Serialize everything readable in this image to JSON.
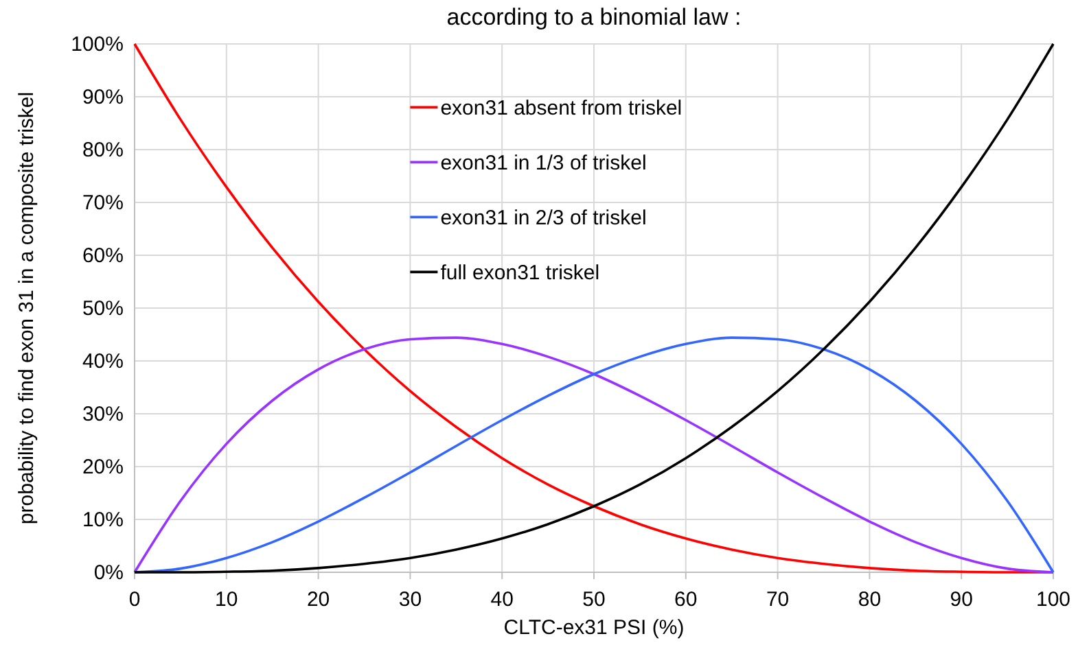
{
  "chart_data": {
    "type": "line",
    "title": "according to a binomial law :",
    "xlabel": "CLTC-ex31 PSI (%)",
    "ylabel": "probability to find exon 31 in a composite triskel",
    "x": [
      0,
      5,
      10,
      15,
      20,
      25,
      30,
      35,
      40,
      45,
      50,
      55,
      60,
      65,
      70,
      75,
      80,
      85,
      90,
      95,
      100
    ],
    "series": [
      {
        "name": "exon31 absent from triskel",
        "color": "#ff0000",
        "values": [
          100,
          85.7,
          72.9,
          61.4,
          51.2,
          42.2,
          34.3,
          27.5,
          21.6,
          16.6,
          12.5,
          9.1,
          6.4,
          4.3,
          2.7,
          1.6,
          0.8,
          0.3,
          0.1,
          0,
          0
        ]
      },
      {
        "name": "exon31 in 1/3 of triskel",
        "color": "#9933ff",
        "values": [
          0,
          13.5,
          24.3,
          32.5,
          38.4,
          42.2,
          44.1,
          44.4,
          43.2,
          40.8,
          37.5,
          33.4,
          28.8,
          23.9,
          18.9,
          14.1,
          9.6,
          5.7,
          2.7,
          0.7,
          0
        ]
      },
      {
        "name": "exon31 in 2/3 of triskel",
        "color": "#3366ff",
        "values": [
          0,
          0.7,
          2.7,
          5.7,
          9.6,
          14.1,
          18.9,
          23.9,
          28.8,
          33.4,
          37.5,
          40.8,
          43.2,
          44.4,
          44.1,
          42.2,
          38.4,
          32.5,
          24.3,
          13.5,
          0
        ]
      },
      {
        "name": "full exon31 triskel",
        "color": "#000000",
        "values": [
          0,
          0,
          0.1,
          0.3,
          0.8,
          1.6,
          2.7,
          4.3,
          6.4,
          9.1,
          12.5,
          16.6,
          21.6,
          27.5,
          34.3,
          42.2,
          51.2,
          61.4,
          72.9,
          85.7,
          100
        ]
      }
    ],
    "xlim": [
      0,
      100
    ],
    "xticks": [
      0,
      10,
      20,
      30,
      40,
      50,
      60,
      70,
      80,
      90,
      100
    ],
    "ylim": [
      0,
      100
    ],
    "yticks": [
      {
        "value": 0,
        "label": "0%"
      },
      {
        "value": 10,
        "label": "10%"
      },
      {
        "value": 20,
        "label": "20%"
      },
      {
        "value": 30,
        "label": "30%"
      },
      {
        "value": 40,
        "label": "40%"
      },
      {
        "value": 50,
        "label": "50%"
      },
      {
        "value": 60,
        "label": "60%"
      },
      {
        "value": 70,
        "label": "70%"
      },
      {
        "value": 80,
        "label": "80%"
      },
      {
        "value": 90,
        "label": "90%"
      },
      {
        "value": 100,
        "label": "100%"
      }
    ],
    "grid": true,
    "legend": "top",
    "marker": "none",
    "line_style": "solid"
  }
}
